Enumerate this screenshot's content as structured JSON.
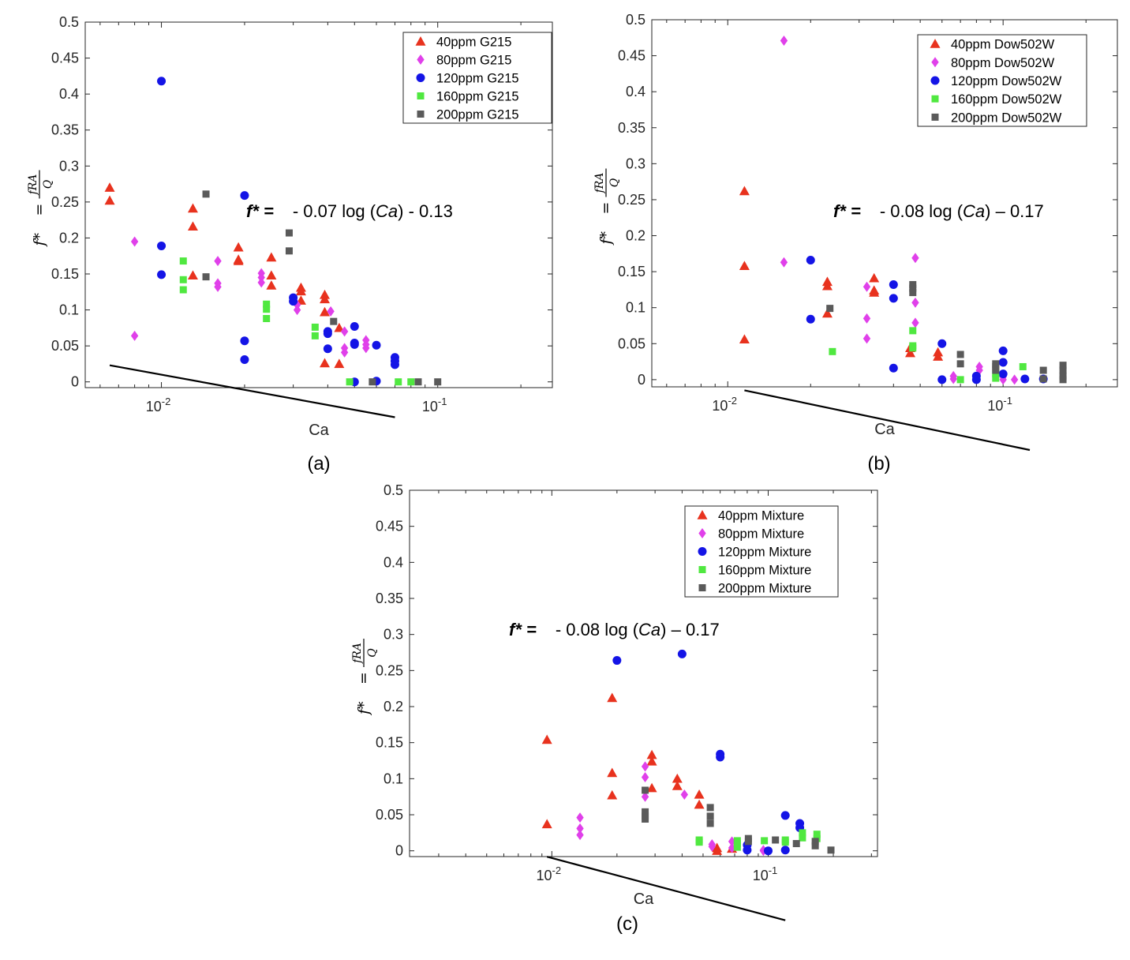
{
  "series_colors": {
    "40ppm": "#e8321e",
    "80ppm": "#e040ea",
    "120ppm": "#1414e6",
    "160ppm": "#50e840",
    "200ppm": "#5a5a5a"
  },
  "chart_data": [
    {
      "id": "a",
      "type": "scatter",
      "panel_label": "(a)",
      "xlabel": "Ca",
      "ylabel": "f* = fRA/Q",
      "xscale": "log",
      "xlim": [
        0.0053,
        0.26
      ],
      "ylim": [
        -0.008,
        0.5
      ],
      "yticks": [
        "0",
        "0.05",
        "0.1",
        "0.15",
        "0.2",
        "0.25",
        "0.3",
        "0.35",
        "0.4",
        "0.45",
        "0.5"
      ],
      "xticks": [
        "10-2",
        "10-1"
      ],
      "legend_position": "top-right",
      "equation": {
        "prefix": "f* =",
        "body": "- 0.07 log (Ca) - 0.13"
      },
      "fit": {
        "slope": -0.07,
        "intercept": -0.13,
        "x_range": [
          0.0065,
          0.07
        ]
      },
      "series": [
        {
          "name": "40ppm G215",
          "marker": "triangle",
          "color_key": "40ppm",
          "points": [
            [
              0.0065,
              0.27
            ],
            [
              0.0065,
              0.252
            ],
            [
              0.013,
              0.241
            ],
            [
              0.013,
              0.216
            ],
            [
              0.013,
              0.148
            ],
            [
              0.019,
              0.187
            ],
            [
              0.019,
              0.17
            ],
            [
              0.019,
              0.168
            ],
            [
              0.025,
              0.173
            ],
            [
              0.025,
              0.148
            ],
            [
              0.025,
              0.134
            ],
            [
              0.032,
              0.131
            ],
            [
              0.032,
              0.126
            ],
            [
              0.032,
              0.113
            ],
            [
              0.039,
              0.121
            ],
            [
              0.039,
              0.115
            ],
            [
              0.039,
              0.097
            ],
            [
              0.039,
              0.026
            ],
            [
              0.044,
              0.075
            ],
            [
              0.044,
              0.025
            ]
          ]
        },
        {
          "name": "80ppm G215",
          "marker": "diamond",
          "color_key": "80ppm",
          "points": [
            [
              0.008,
              0.195
            ],
            [
              0.008,
              0.064
            ],
            [
              0.016,
              0.168
            ],
            [
              0.016,
              0.137
            ],
            [
              0.016,
              0.132
            ],
            [
              0.023,
              0.151
            ],
            [
              0.023,
              0.145
            ],
            [
              0.023,
              0.138
            ],
            [
              0.031,
              0.107
            ],
            [
              0.031,
              0.1
            ],
            [
              0.041,
              0.098
            ],
            [
              0.046,
              0.07
            ],
            [
              0.046,
              0.047
            ],
            [
              0.046,
              0.041
            ],
            [
              0.055,
              0.058
            ],
            [
              0.055,
              0.052
            ],
            [
              0.055,
              0.047
            ]
          ]
        },
        {
          "name": "120ppm G215",
          "marker": "circle",
          "color_key": "120ppm",
          "points": [
            [
              0.01,
              0.418
            ],
            [
              0.01,
              0.189
            ],
            [
              0.01,
              0.149
            ],
            [
              0.02,
              0.259
            ],
            [
              0.02,
              0.057
            ],
            [
              0.02,
              0.031
            ],
            [
              0.03,
              0.117
            ],
            [
              0.03,
              0.112
            ],
            [
              0.04,
              0.07
            ],
            [
              0.04,
              0.067
            ],
            [
              0.04,
              0.046
            ],
            [
              0.05,
              0.077
            ],
            [
              0.05,
              0.054
            ],
            [
              0.05,
              0.052
            ],
            [
              0.05,
              0.0
            ],
            [
              0.06,
              0.051
            ],
            [
              0.06,
              0.001
            ],
            [
              0.07,
              0.034
            ],
            [
              0.07,
              0.029
            ],
            [
              0.07,
              0.024
            ]
          ]
        },
        {
          "name": "160ppm G215",
          "marker": "square",
          "color_key": "160ppm",
          "points": [
            [
              0.012,
              0.168
            ],
            [
              0.012,
              0.142
            ],
            [
              0.012,
              0.128
            ],
            [
              0.024,
              0.108
            ],
            [
              0.024,
              0.101
            ],
            [
              0.024,
              0.088
            ],
            [
              0.036,
              0.076
            ],
            [
              0.036,
              0.064
            ],
            [
              0.048,
              0.0
            ],
            [
              0.072,
              0.0
            ],
            [
              0.08,
              0.0
            ]
          ]
        },
        {
          "name": "200ppm G215",
          "marker": "square",
          "color_key": "200ppm",
          "points": [
            [
              0.0145,
              0.261
            ],
            [
              0.0145,
              0.146
            ],
            [
              0.029,
              0.207
            ],
            [
              0.029,
              0.182
            ],
            [
              0.042,
              0.084
            ],
            [
              0.058,
              0.0
            ],
            [
              0.085,
              0.0
            ],
            [
              0.1,
              0.0
            ]
          ]
        }
      ]
    },
    {
      "id": "b",
      "type": "scatter",
      "panel_label": "(b)",
      "xlabel": "Ca",
      "ylabel": "f* = fRA/Q",
      "xscale": "log",
      "xlim": [
        0.0053,
        0.26
      ],
      "ylim": [
        -0.01,
        0.5
      ],
      "yticks": [
        "0",
        "0.05",
        "0.1",
        "0.15",
        "0.2",
        "0.25",
        "0.3",
        "0.35",
        "0.4",
        "0.45",
        "0.5"
      ],
      "xticks": [
        "10-2",
        "10-1"
      ],
      "legend_position": "top-right",
      "equation": {
        "prefix": "f* =",
        "body": "- 0.08 log (Ca) – 0.17"
      },
      "fit": {
        "slope": -0.08,
        "intercept": -0.17,
        "x_range": [
          0.0115,
          0.125
        ]
      },
      "series": [
        {
          "name": "40ppm Dow502W",
          "marker": "triangle",
          "color_key": "40ppm",
          "points": [
            [
              0.0115,
              0.262
            ],
            [
              0.0115,
              0.158
            ],
            [
              0.0115,
              0.056
            ],
            [
              0.023,
              0.136
            ],
            [
              0.023,
              0.13
            ],
            [
              0.023,
              0.092
            ],
            [
              0.034,
              0.141
            ],
            [
              0.034,
              0.124
            ],
            [
              0.034,
              0.121
            ],
            [
              0.046,
              0.044
            ],
            [
              0.046,
              0.037
            ],
            [
              0.058,
              0.038
            ],
            [
              0.058,
              0.032
            ]
          ]
        },
        {
          "name": "80ppm Dow502W",
          "marker": "diamond",
          "color_key": "80ppm",
          "points": [
            [
              0.016,
              0.471
            ],
            [
              0.016,
              0.163
            ],
            [
              0.032,
              0.129
            ],
            [
              0.032,
              0.085
            ],
            [
              0.032,
              0.057
            ],
            [
              0.048,
              0.169
            ],
            [
              0.048,
              0.107
            ],
            [
              0.048,
              0.079
            ],
            [
              0.066,
              0.005
            ],
            [
              0.066,
              0.001
            ],
            [
              0.082,
              0.018
            ],
            [
              0.082,
              0.013
            ],
            [
              0.1,
              0.004
            ],
            [
              0.1,
              0.0
            ],
            [
              0.11,
              0.0
            ]
          ]
        },
        {
          "name": "120ppm Dow502W",
          "marker": "circle",
          "color_key": "120ppm",
          "points": [
            [
              0.02,
              0.166
            ],
            [
              0.02,
              0.084
            ],
            [
              0.04,
              0.132
            ],
            [
              0.04,
              0.113
            ],
            [
              0.04,
              0.016
            ],
            [
              0.06,
              0.05
            ],
            [
              0.06,
              0.0
            ],
            [
              0.08,
              0.005
            ],
            [
              0.08,
              0.0
            ],
            [
              0.1,
              0.04
            ],
            [
              0.1,
              0.024
            ],
            [
              0.1,
              0.008
            ],
            [
              0.12,
              0.001
            ],
            [
              0.14,
              0.001
            ]
          ]
        },
        {
          "name": "160ppm Dow502W",
          "marker": "square",
          "color_key": "160ppm",
          "points": [
            [
              0.024,
              0.039
            ],
            [
              0.047,
              0.068
            ],
            [
              0.047,
              0.047
            ],
            [
              0.047,
              0.044
            ],
            [
              0.07,
              0.0
            ],
            [
              0.094,
              0.008
            ],
            [
              0.094,
              0.002
            ],
            [
              0.118,
              0.018
            ]
          ]
        },
        {
          "name": "200ppm Dow502W",
          "marker": "square",
          "color_key": "200ppm",
          "points": [
            [
              0.0235,
              0.099
            ],
            [
              0.047,
              0.132
            ],
            [
              0.047,
              0.127
            ],
            [
              0.047,
              0.121
            ],
            [
              0.07,
              0.035
            ],
            [
              0.07,
              0.022
            ],
            [
              0.094,
              0.022
            ],
            [
              0.094,
              0.018
            ],
            [
              0.094,
              0.013
            ],
            [
              0.14,
              0.013
            ],
            [
              0.14,
              0.001
            ],
            [
              0.165,
              0.02
            ],
            [
              0.165,
              0.013
            ],
            [
              0.165,
              0.005
            ],
            [
              0.165,
              0.0
            ]
          ]
        }
      ]
    },
    {
      "id": "c",
      "type": "scatter",
      "panel_label": "(c)",
      "xlabel": "Ca",
      "ylabel": "f* = fRA/Q",
      "xscale": "log",
      "xlim": [
        0.0022,
        0.32
      ],
      "ylim": [
        -0.008,
        0.5
      ],
      "yticks": [
        "0",
        "0.05",
        "0.1",
        "0.15",
        "0.2",
        "0.25",
        "0.3",
        "0.35",
        "0.4",
        "0.45",
        "0.5"
      ],
      "xticks": [
        "10-2",
        "10-1"
      ],
      "legend_position": "top-right",
      "equation": {
        "prefix": "f* =",
        "body": "- 0.08 log (Ca) – 0.17"
      },
      "fit": {
        "slope": -0.08,
        "intercept": -0.17,
        "x_range": [
          0.0095,
          0.12
        ]
      },
      "series": [
        {
          "name": "40ppm Mixture",
          "marker": "triangle",
          "color_key": "40ppm",
          "points": [
            [
              0.0095,
              0.154
            ],
            [
              0.0095,
              0.037
            ],
            [
              0.019,
              0.212
            ],
            [
              0.019,
              0.108
            ],
            [
              0.019,
              0.077
            ],
            [
              0.029,
              0.133
            ],
            [
              0.029,
              0.124
            ],
            [
              0.029,
              0.087
            ],
            [
              0.038,
              0.1
            ],
            [
              0.038,
              0.09
            ],
            [
              0.048,
              0.078
            ],
            [
              0.048,
              0.064
            ],
            [
              0.058,
              0.004
            ],
            [
              0.058,
              0.0
            ],
            [
              0.068,
              0.003
            ]
          ]
        },
        {
          "name": "80ppm Mixture",
          "marker": "diamond",
          "color_key": "80ppm",
          "points": [
            [
              0.0135,
              0.046
            ],
            [
              0.0135,
              0.031
            ],
            [
              0.0135,
              0.022
            ],
            [
              0.027,
              0.117
            ],
            [
              0.027,
              0.102
            ],
            [
              0.027,
              0.075
            ],
            [
              0.041,
              0.078
            ],
            [
              0.055,
              0.009
            ],
            [
              0.055,
              0.006
            ],
            [
              0.068,
              0.013
            ],
            [
              0.068,
              0.004
            ],
            [
              0.095,
              0.0
            ],
            [
              0.095,
              0.001
            ]
          ]
        },
        {
          "name": "120ppm Mixture",
          "marker": "circle",
          "color_key": "120ppm",
          "points": [
            [
              0.02,
              0.264
            ],
            [
              0.04,
              0.273
            ],
            [
              0.06,
              0.134
            ],
            [
              0.06,
              0.13
            ],
            [
              0.08,
              0.008
            ],
            [
              0.08,
              0.001
            ],
            [
              0.1,
              0.0
            ],
            [
              0.12,
              0.049
            ],
            [
              0.12,
              0.001
            ],
            [
              0.14,
              0.038
            ],
            [
              0.14,
              0.032
            ]
          ]
        },
        {
          "name": "160ppm Mixture",
          "marker": "square",
          "color_key": "160ppm",
          "points": [
            [
              0.048,
              0.015
            ],
            [
              0.048,
              0.012
            ],
            [
              0.072,
              0.014
            ],
            [
              0.072,
              0.01
            ],
            [
              0.072,
              0.005
            ],
            [
              0.096,
              0.014
            ],
            [
              0.12,
              0.015
            ],
            [
              0.12,
              0.012
            ],
            [
              0.144,
              0.025
            ],
            [
              0.144,
              0.018
            ],
            [
              0.168,
              0.023
            ],
            [
              0.168,
              0.017
            ]
          ]
        },
        {
          "name": "200ppm Mixture",
          "marker": "square",
          "color_key": "200ppm",
          "points": [
            [
              0.027,
              0.084
            ],
            [
              0.027,
              0.054
            ],
            [
              0.027,
              0.048
            ],
            [
              0.027,
              0.044
            ],
            [
              0.054,
              0.06
            ],
            [
              0.054,
              0.048
            ],
            [
              0.054,
              0.038
            ],
            [
              0.081,
              0.017
            ],
            [
              0.081,
              0.013
            ],
            [
              0.108,
              0.015
            ],
            [
              0.135,
              0.01
            ],
            [
              0.165,
              0.013
            ],
            [
              0.165,
              0.007
            ],
            [
              0.195,
              0.001
            ]
          ]
        }
      ]
    }
  ]
}
